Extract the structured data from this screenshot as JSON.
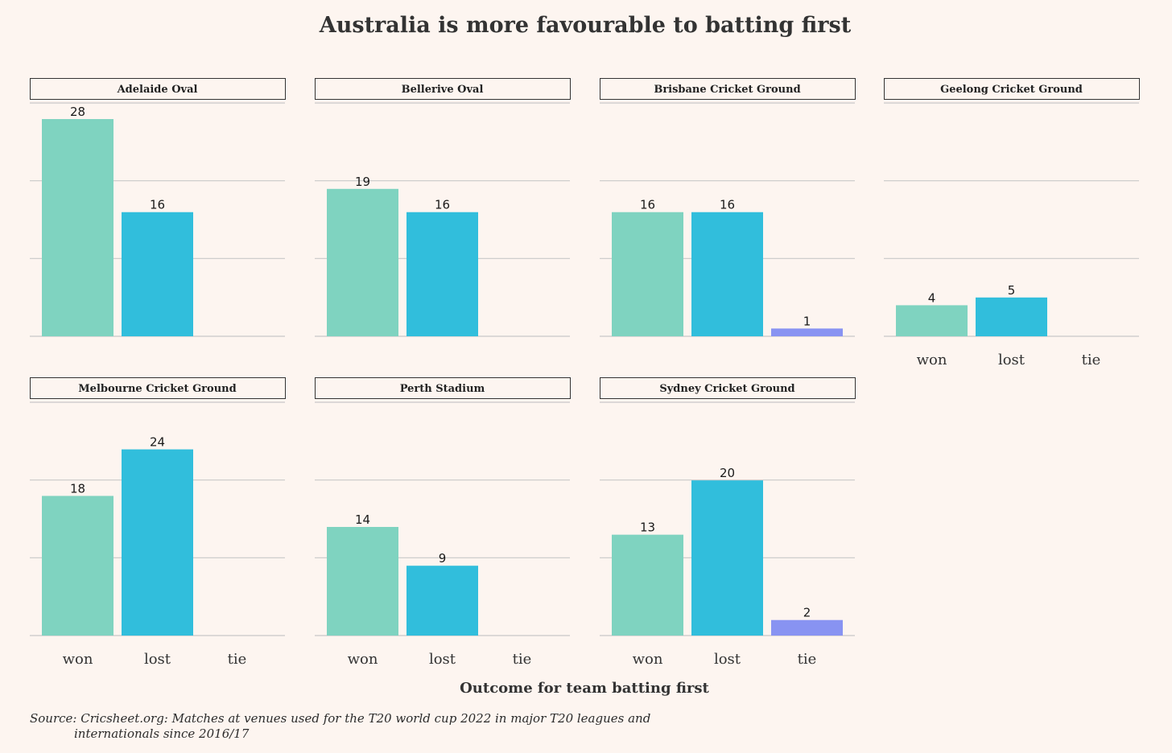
{
  "chart_data": {
    "type": "bar",
    "title": "Australia is more favourable to batting first",
    "xlabel": "Outcome for team batting first",
    "ylabel": "",
    "ylim": [
      0,
      28
    ],
    "grid": true,
    "categories": [
      "won",
      "lost",
      "tie"
    ],
    "colors": {
      "won": "#7fd3c0",
      "lost": "#31bedc",
      "tie": "#8893f2",
      "grid": "#c8c8c8",
      "strip_border": "#333333"
    },
    "panels": [
      {
        "name": "Adelaide Oval",
        "values": {
          "won": 28,
          "lost": 16
        }
      },
      {
        "name": "Bellerive Oval",
        "values": {
          "won": 19,
          "lost": 16
        }
      },
      {
        "name": "Brisbane Cricket Ground",
        "values": {
          "won": 16,
          "lost": 16,
          "tie": 1
        }
      },
      {
        "name": "Geelong Cricket Ground",
        "values": {
          "won": 4,
          "lost": 5
        }
      },
      {
        "name": "Melbourne Cricket Ground",
        "values": {
          "won": 18,
          "lost": 24
        }
      },
      {
        "name": "Perth Stadium",
        "values": {
          "won": 14,
          "lost": 9
        }
      },
      {
        "name": "Sydney Cricket Ground",
        "values": {
          "won": 13,
          "lost": 20,
          "tie": 2
        }
      }
    ],
    "source_line1": "Source: Cricsheet.org: Matches at venues used for the T20 world cup 2022 in major T20 leagues and",
    "source_line2": "internationals since 2016/17"
  }
}
